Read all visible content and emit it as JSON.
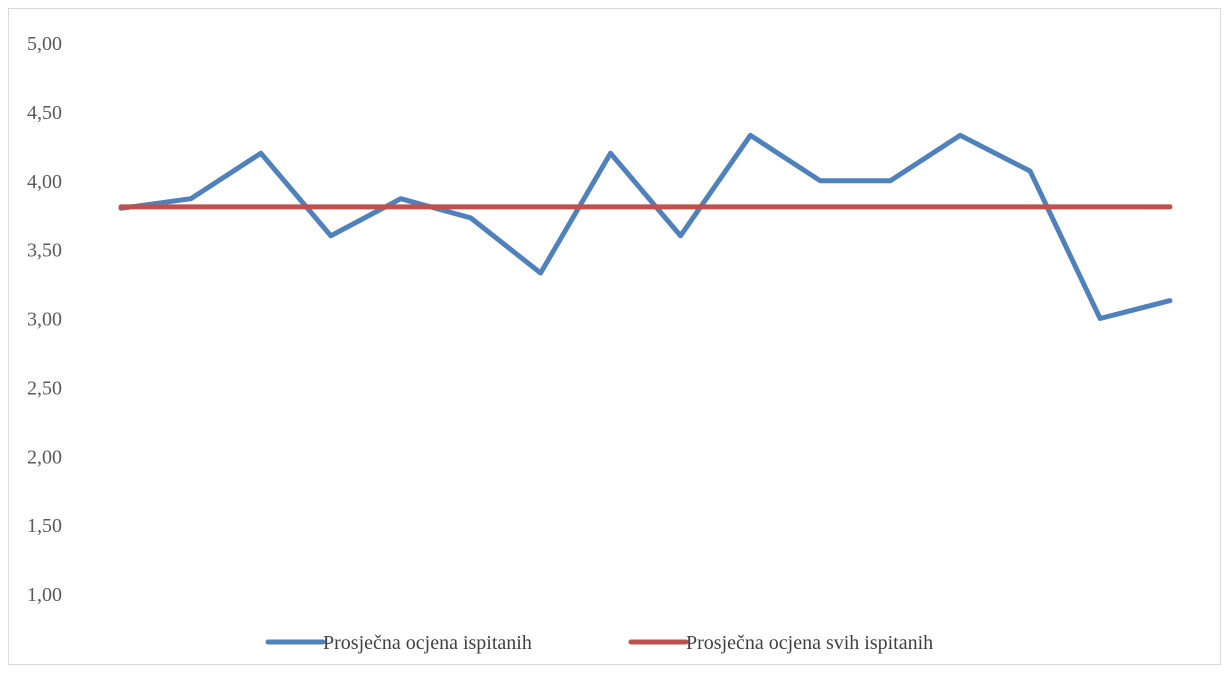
{
  "chart_data": {
    "type": "line",
    "title": "",
    "xlabel": "",
    "ylabel": "",
    "ylim": [
      1.0,
      5.0
    ],
    "y_ticks": [
      "1,00",
      "1,50",
      "2,00",
      "2,50",
      "3,00",
      "3,50",
      "4,00",
      "4,50",
      "5,00"
    ],
    "grid": false,
    "legend_position": "bottom",
    "x": [
      1,
      2,
      3,
      4,
      5,
      6,
      7,
      8,
      9,
      10,
      11,
      12,
      13,
      14,
      15,
      16
    ],
    "series": [
      {
        "name": "Prosječna ocjena ispitanih",
        "color": "#4f81bd",
        "values": [
          3.8,
          3.87,
          4.2,
          3.6,
          3.87,
          3.73,
          3.33,
          4.2,
          3.6,
          4.33,
          4.0,
          4.0,
          4.33,
          4.07,
          3.0,
          3.13
        ]
      },
      {
        "name": "Prosječna ocjena svih ispitanih",
        "color": "#c0504d",
        "values": [
          3.81,
          3.81,
          3.81,
          3.81,
          3.81,
          3.81,
          3.81,
          3.81,
          3.81,
          3.81,
          3.81,
          3.81,
          3.81,
          3.81,
          3.81,
          3.81
        ]
      }
    ]
  }
}
